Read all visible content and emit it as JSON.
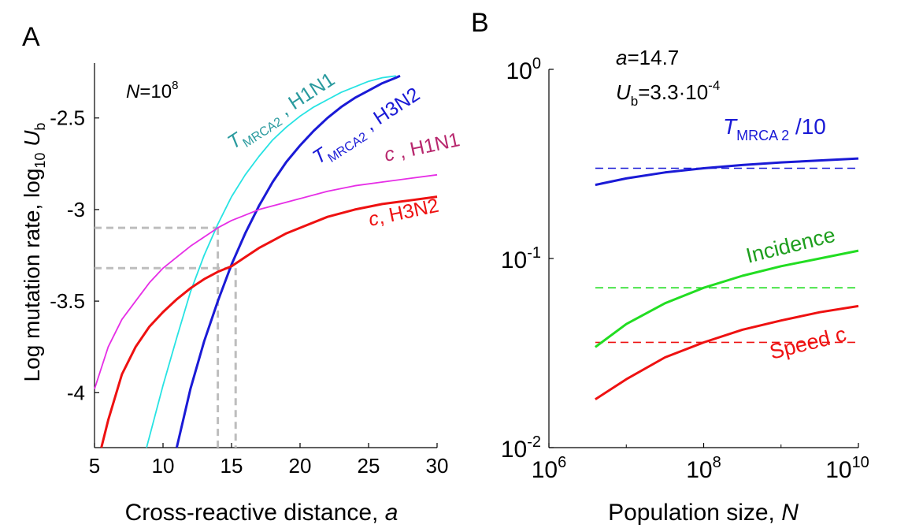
{
  "chart_data": [
    {
      "panel": "A",
      "type": "line",
      "xlabel": "Cross-reactive distance, a",
      "ylabel": "Log mutation rate,  log10 Ub",
      "xlim": [
        5,
        30
      ],
      "ylim": [
        -4.3,
        -2.2
      ],
      "xticks": [
        5,
        10,
        15,
        20,
        25,
        30
      ],
      "yticks": [
        -4,
        -3.5,
        -3,
        -2.5
      ],
      "ytick_labels": [
        "-4",
        "-3.5",
        "-3",
        "-2.5"
      ],
      "annotation": {
        "text_italic": "N",
        "text_eq": "=10",
        "text_sup": "8"
      },
      "series": [
        {
          "name": "TMRCA2 , H1N1",
          "label_main": "T",
          "label_sub": "MRCA2",
          "label_rest": " , H1N1",
          "color": "#27e3e3",
          "label_color": "#2a9a9e",
          "x": [
            8.8,
            10,
            11,
            12,
            13,
            14,
            15,
            16,
            17,
            18,
            19,
            20,
            21,
            22,
            23,
            24,
            25,
            26,
            27
          ],
          "y": [
            -4.3,
            -3.96,
            -3.7,
            -3.45,
            -3.25,
            -3.08,
            -2.93,
            -2.81,
            -2.71,
            -2.62,
            -2.55,
            -2.49,
            -2.44,
            -2.4,
            -2.36,
            -2.33,
            -2.3,
            -2.28,
            -2.27
          ]
        },
        {
          "name": "TMRCA2 , H3N2",
          "label_main": "T",
          "label_sub": "MRCA2",
          "label_rest": " , H3N2",
          "color": "#1a1ad6",
          "label_color": "#1a1ad6",
          "x": [
            11,
            12,
            13,
            14,
            15,
            16,
            17,
            18,
            19,
            20,
            21,
            22,
            23,
            24,
            25,
            26,
            27,
            27.3
          ],
          "y": [
            -4.3,
            -3.98,
            -3.72,
            -3.5,
            -3.3,
            -3.13,
            -2.98,
            -2.85,
            -2.74,
            -2.65,
            -2.57,
            -2.5,
            -2.44,
            -2.39,
            -2.35,
            -2.31,
            -2.28,
            -2.27
          ]
        },
        {
          "name": "c , H1N1",
          "label_main": "c",
          "label_rest": " , H1N1",
          "color": "#e62ee6",
          "label_color": "#b8286e",
          "x": [
            5,
            6,
            7,
            8,
            9,
            10,
            11,
            12,
            13,
            14,
            15,
            16,
            17,
            18,
            19,
            20,
            22,
            24,
            26,
            28,
            30
          ],
          "y": [
            -3.98,
            -3.75,
            -3.6,
            -3.5,
            -3.4,
            -3.32,
            -3.26,
            -3.2,
            -3.15,
            -3.1,
            -3.06,
            -3.03,
            -3.0,
            -2.98,
            -2.96,
            -2.94,
            -2.9,
            -2.87,
            -2.85,
            -2.83,
            -2.81
          ]
        },
        {
          "name": "c, H3N2",
          "label_main": "c",
          "label_rest": ", H3N2",
          "color": "#ee1111",
          "label_color": "#ee1111",
          "x": [
            5.5,
            6,
            7,
            8,
            9,
            10,
            11,
            12,
            13,
            14,
            15,
            16,
            17,
            18,
            19,
            20,
            22,
            24,
            26,
            28,
            30
          ],
          "y": [
            -4.3,
            -4.15,
            -3.9,
            -3.75,
            -3.64,
            -3.56,
            -3.49,
            -3.43,
            -3.38,
            -3.34,
            -3.31,
            -3.26,
            -3.21,
            -3.17,
            -3.13,
            -3.1,
            -3.04,
            -3.0,
            -2.97,
            -2.95,
            -2.93
          ]
        }
      ],
      "guides": [
        {
          "x": 14.0,
          "y": -3.1,
          "color": "#bdbdbd"
        },
        {
          "x": 15.3,
          "y": -3.32,
          "color": "#bdbdbd"
        }
      ]
    },
    {
      "panel": "B",
      "type": "line",
      "xscale": "log",
      "yscale": "log",
      "xlabel": "Population size, N",
      "xlim": [
        1000000.0,
        10000000000.0
      ],
      "ylim": [
        0.01,
        1
      ],
      "xticks": [
        {
          "base": "10",
          "exp": "6"
        },
        {
          "base": "10",
          "exp": "8"
        },
        {
          "base": "10",
          "exp": "10"
        }
      ],
      "yticks": [
        {
          "base": "10",
          "exp": "-2"
        },
        {
          "base": "10",
          "exp": "-1"
        },
        {
          "base": "10",
          "exp": "0"
        }
      ],
      "annotations": {
        "a_italic": "a",
        "a_value": "=14.7",
        "u_italic": "U",
        "u_sub": "b",
        "u_value": "=3.3·10",
        "u_sup": "-4"
      },
      "series": [
        {
          "name": "TMRCA 2 /10",
          "label_main": "T",
          "label_sub": "MRCA 2",
          "label_rest": " /10",
          "color": "#1a1ad6",
          "log10_x": [
            6.6,
            7,
            7.5,
            8,
            8.5,
            9,
            9.5,
            10
          ],
          "y": [
            0.245,
            0.265,
            0.285,
            0.3,
            0.312,
            0.322,
            0.33,
            0.338
          ],
          "reference": 0.3
        },
        {
          "name": "Incidence",
          "color": "#22dd22",
          "label_color": "#1e9e1e",
          "log10_x": [
            6.6,
            7,
            7.5,
            8,
            8.5,
            9,
            9.5,
            10
          ],
          "y": [
            0.034,
            0.045,
            0.058,
            0.07,
            0.081,
            0.091,
            0.1,
            0.11
          ],
          "reference": 0.07
        },
        {
          "name": "Speed c",
          "color": "#ee1111",
          "log10_x": [
            6.6,
            7,
            7.5,
            8,
            8.5,
            9,
            9.5,
            10
          ],
          "y": [
            0.018,
            0.023,
            0.03,
            0.036,
            0.042,
            0.047,
            0.052,
            0.056
          ],
          "reference": 0.036
        }
      ]
    }
  ],
  "panels": {
    "a_letter": "A",
    "b_letter": "B"
  }
}
